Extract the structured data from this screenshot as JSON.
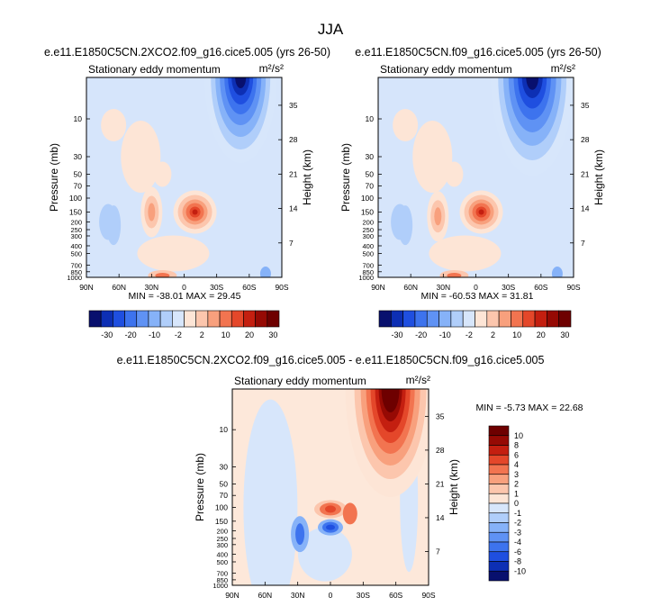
{
  "page_title": "JJA",
  "chart_data": [
    {
      "type": "heatmap",
      "title": "e.e11.E1850C5CN.2XCO2.f09_g16.cice5.005 (yrs 26-50)",
      "subtitle": "Stationary eddy momentum",
      "units": "m²/s²",
      "ylabel": "Pressure (mb)",
      "ylabel_right": "Height (km)",
      "x_tick_labels": [
        "90N",
        "60N",
        "30N",
        "0",
        "30S",
        "60S",
        "90S"
      ],
      "y_tick_labels": [
        "10",
        "30",
        "50",
        "70",
        "100",
        "150",
        "200",
        "250",
        "300",
        "400",
        "500",
        "700",
        "850",
        "1000"
      ],
      "height_tick_labels": [
        "35",
        "28",
        "21",
        "14",
        "7"
      ],
      "stats": "MIN = -38.01   MAX = 29.45",
      "min": -38.01,
      "max": 29.45,
      "colorbar_labels": [
        "-30",
        "-20",
        "-10",
        "-2",
        "2",
        "10",
        "20",
        "30"
      ],
      "features": [
        {
          "lat": -55,
          "p": 5,
          "value": -38
        },
        {
          "lat": -10,
          "p": 150,
          "value": 29
        },
        {
          "lat": 30,
          "p": 150,
          "value": 6
        },
        {
          "lat": 20,
          "p": 950,
          "value": 8
        }
      ]
    },
    {
      "type": "heatmap",
      "title": "e.e11.E1850C5CN.f09_g16.cice5.005 (yrs 26-50)",
      "subtitle": "Stationary eddy momentum",
      "units": "m²/s²",
      "ylabel": "Pressure (mb)",
      "ylabel_right": "Height (km)",
      "x_tick_labels": [
        "90N",
        "60N",
        "30N",
        "0",
        "30S",
        "60S",
        "90S"
      ],
      "y_tick_labels": [
        "10",
        "30",
        "50",
        "70",
        "100",
        "150",
        "200",
        "250",
        "300",
        "400",
        "500",
        "700",
        "850",
        "1000"
      ],
      "height_tick_labels": [
        "35",
        "28",
        "21",
        "14",
        "7"
      ],
      "stats": "MIN = -60.53   MAX = 31.81",
      "min": -60.53,
      "max": 31.81,
      "colorbar_labels": [
        "-30",
        "-20",
        "-10",
        "-2",
        "2",
        "10",
        "20",
        "30"
      ],
      "features": [
        {
          "lat": -55,
          "p": 5,
          "value": -60
        },
        {
          "lat": -5,
          "p": 150,
          "value": 31
        },
        {
          "lat": 35,
          "p": 170,
          "value": 8
        },
        {
          "lat": 20,
          "p": 950,
          "value": 8
        }
      ]
    },
    {
      "type": "heatmap",
      "title": "e.e11.E1850C5CN.2XCO2.f09_g16.cice5.005 - e.e11.E1850C5CN.f09_g16.cice5.005",
      "subtitle": "Stationary eddy momentum",
      "units": "m²/s²",
      "ylabel": "Pressure (mb)",
      "ylabel_right": "Height (km)",
      "x_tick_labels": [
        "90N",
        "60N",
        "30N",
        "0",
        "30S",
        "60S",
        "90S"
      ],
      "y_tick_labels": [
        "10",
        "30",
        "50",
        "70",
        "100",
        "150",
        "200",
        "250",
        "300",
        "400",
        "500",
        "700",
        "850",
        "1000"
      ],
      "height_tick_labels": [
        "35",
        "28",
        "21",
        "14",
        "7"
      ],
      "stats": "MIN = -5.73   MAX = 22.68",
      "min": -5.73,
      "max": 22.68,
      "colorbar_labels": [
        "10",
        "8",
        "6",
        "4",
        "3",
        "2",
        "1",
        "0",
        "-1",
        "-2",
        "-3",
        "-4",
        "-6",
        "-8",
        "-10"
      ],
      "features": [
        {
          "lat": -55,
          "p": 5,
          "value": 22
        },
        {
          "lat": 0,
          "p": 105,
          "value": 6
        },
        {
          "lat": 0,
          "p": 180,
          "value": -5.7
        },
        {
          "lat": 28,
          "p": 220,
          "value": -3
        }
      ]
    }
  ],
  "colors": {
    "seq": [
      "#08106e",
      "#0d2fb4",
      "#1f4fe0",
      "#3d73ee",
      "#5f92f4",
      "#86b2f8",
      "#b0cefa",
      "#d7e6fb",
      "#fde5d6",
      "#fcc6ad",
      "#f8a07d",
      "#f27450",
      "#e4472a",
      "#c41f10",
      "#960a04",
      "#6e0000"
    ]
  }
}
